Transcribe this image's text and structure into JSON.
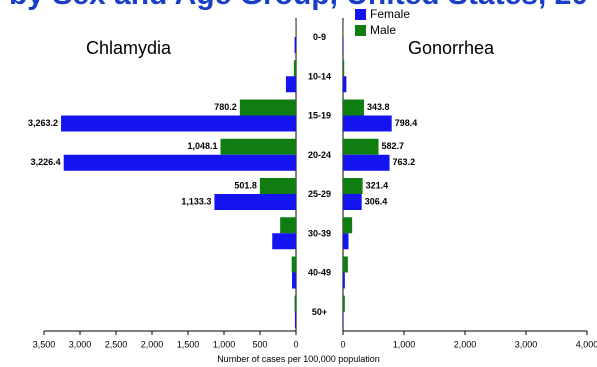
{
  "chart_data": {
    "type": "bar",
    "orientation": "horizontal-butterfly",
    "title_fragment": "by Sex and Age Group, United States, 20",
    "categories": [
      "0-9",
      "10-14",
      "15-19",
      "20-24",
      "25-29",
      "30-39",
      "40-49",
      "50+"
    ],
    "xlabel": "Number of cases per 100,000 population",
    "legend": [
      "Female",
      "Male"
    ],
    "colors": {
      "Female": "#1414f0",
      "Male": "#0f7d0f"
    },
    "legend_position": "top-center",
    "left": {
      "title": "Chlamydia",
      "xlim": [
        0,
        3500
      ],
      "ticks": [
        "3,500",
        "3,000",
        "2,500",
        "2,000",
        "1,500",
        "1,000",
        "500",
        "0"
      ],
      "series": [
        {
          "name": "Male",
          "values": [
            5,
            30,
            780.2,
            1048.1,
            501.8,
            220,
            60,
            20
          ]
        },
        {
          "name": "Female",
          "values": [
            20,
            140,
            3263.2,
            3226.4,
            1133.3,
            330,
            55,
            15
          ]
        }
      ],
      "data_labels": {
        "Male": [
          "",
          "",
          "780.2",
          "1,048.1",
          "501.8",
          "",
          "",
          ""
        ],
        "Female": [
          "",
          "",
          "3,263.2",
          "3,226.4",
          "1,133.3",
          "",
          "",
          ""
        ]
      }
    },
    "right": {
      "title": "Gonorrhea",
      "xlim": [
        0,
        4000
      ],
      "ticks": [
        "0",
        "1,000",
        "2,000",
        "3,000",
        "4,000"
      ],
      "series": [
        {
          "name": "Male",
          "values": [
            5,
            20,
            343.8,
            582.7,
            321.4,
            150,
            80,
            30
          ]
        },
        {
          "name": "Female",
          "values": [
            10,
            55,
            798.4,
            763.2,
            306.4,
            90,
            30,
            10
          ]
        }
      ],
      "data_labels": {
        "Male": [
          "",
          "",
          "343.8",
          "582.7",
          "321.4",
          "",
          "",
          ""
        ],
        "Female": [
          "",
          "",
          "798.4",
          "763.2",
          "306.4",
          "",
          "",
          ""
        ]
      }
    }
  }
}
